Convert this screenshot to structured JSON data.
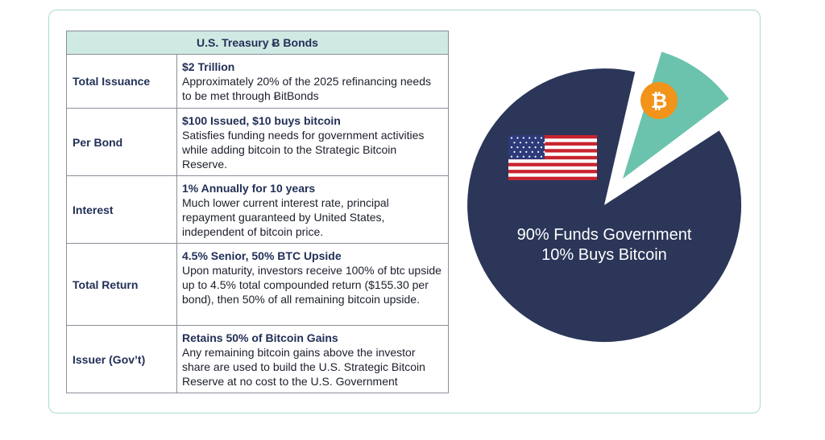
{
  "table": {
    "title": "U.S. Treasury Ƀ Bonds",
    "rows": [
      {
        "label": "Total Issuance",
        "headline": "$2 Trillion",
        "body": "Approximately 20% of the 2025 refinancing needs to be met through ɃitBonds"
      },
      {
        "label": "Per Bond",
        "headline": "$100 Issued, $10 buys bitcoin",
        "body": "Satisfies funding needs for government activities while adding bitcoin to the Strategic Bitcoin Reserve."
      },
      {
        "label": "Interest",
        "headline": "1% Annually for 10 years",
        "body": "Much lower current interest rate, principal repayment guaranteed by United States, independent of bitcoin price."
      },
      {
        "label": "Total Return",
        "headline": "4.5% Senior, 50% BTC Upside",
        "body": "Upon maturity, investors receive 100% of btc upside up to 4.5% total compounded return ($155.30 per bond), then 50% of all remaining bitcoin upside."
      },
      {
        "label": "Issuer (Gov’t)",
        "headline": "Retains 50% of Bitcoin Gains",
        "body": "Any remaining bitcoin gains above the investor share are used to build the U.S. Strategic Bitcoin Reserve at no cost to the U.S. Government"
      }
    ]
  },
  "chart_data": {
    "type": "pie",
    "title": "",
    "slices": [
      {
        "label": "Funds Government",
        "value": 90,
        "color": "#2b3659",
        "icon": "us-flag-icon"
      },
      {
        "label": "Buys Bitcoin",
        "value": 10,
        "color": "#6cc3ad",
        "icon": "bitcoin-icon",
        "exploded": true
      }
    ],
    "annotations": [
      "90% Funds Government",
      "10% Buys Bitcoin"
    ],
    "bitcoin_symbol": "₿"
  },
  "colors": {
    "accent_teal": "#6cc3ad",
    "navy": "#2b3659",
    "bitcoin_orange": "#f2931a",
    "header_bg": "#cfe9e3"
  }
}
